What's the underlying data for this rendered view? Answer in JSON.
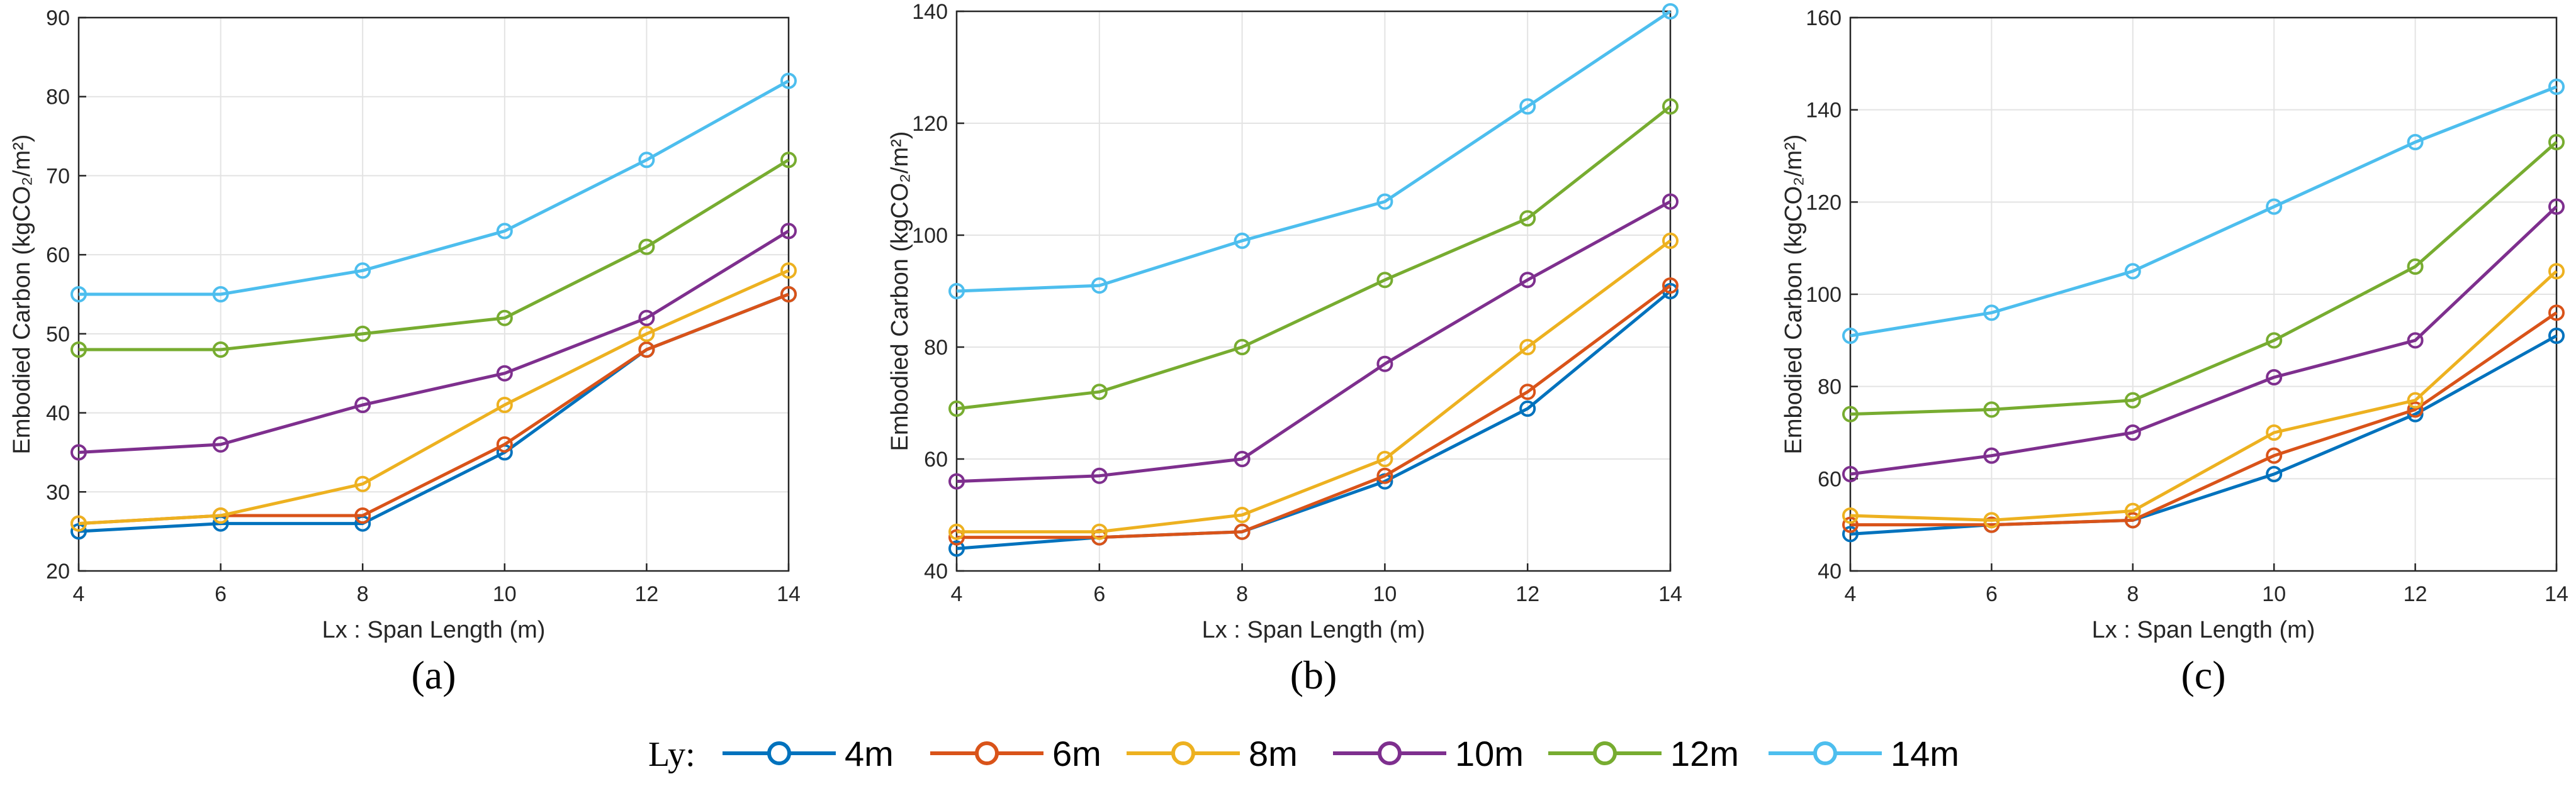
{
  "figure": {
    "panel_labels": [
      "(a)",
      "(b)",
      "(c)"
    ],
    "legend_title": "Ly:",
    "colors": {
      "4m": "#0072BD",
      "6m": "#D95319",
      "8m": "#EDB120",
      "10m": "#7E2F8E",
      "12m": "#77AC30",
      "14m": "#4DBEEE"
    }
  },
  "chart_data": [
    {
      "type": "line",
      "panel": "(a)",
      "title": "",
      "xlabel": "Lx : Span Length (m)",
      "ylabel": "Embodied Carbon (kgCO₂/m²)",
      "x": [
        4,
        6,
        8,
        10,
        12,
        14
      ],
      "xlim": [
        4,
        14
      ],
      "ylim": [
        20,
        90
      ],
      "yticks": [
        20,
        30,
        40,
        50,
        60,
        70,
        80,
        90
      ],
      "grid": true,
      "series": [
        {
          "name": "4m",
          "values": [
            25,
            26,
            26,
            35,
            48,
            55
          ]
        },
        {
          "name": "6m",
          "values": [
            26,
            27,
            27,
            36,
            48,
            55
          ]
        },
        {
          "name": "8m",
          "values": [
            26,
            27,
            31,
            41,
            50,
            58
          ]
        },
        {
          "name": "10m",
          "values": [
            35,
            36,
            41,
            45,
            52,
            63
          ]
        },
        {
          "name": "12m",
          "values": [
            48,
            48,
            50,
            52,
            61,
            72
          ]
        },
        {
          "name": "14m",
          "values": [
            55,
            55,
            58,
            63,
            72,
            82
          ]
        }
      ]
    },
    {
      "type": "line",
      "panel": "(b)",
      "title": "",
      "xlabel": "Lx : Span Length (m)",
      "ylabel": "Embodied Carbon (kgCO₂/m²)",
      "x": [
        4,
        6,
        8,
        10,
        12,
        14
      ],
      "xlim": [
        4,
        14
      ],
      "ylim": [
        40,
        140
      ],
      "yticks": [
        40,
        60,
        80,
        100,
        120,
        140
      ],
      "grid": true,
      "series": [
        {
          "name": "4m",
          "values": [
            44,
            46,
            47,
            56,
            69,
            90
          ]
        },
        {
          "name": "6m",
          "values": [
            46,
            46,
            47,
            57,
            72,
            91
          ]
        },
        {
          "name": "8m",
          "values": [
            47,
            47,
            50,
            60,
            80,
            99
          ]
        },
        {
          "name": "10m",
          "values": [
            56,
            57,
            60,
            77,
            92,
            106
          ]
        },
        {
          "name": "12m",
          "values": [
            69,
            72,
            80,
            92,
            103,
            123
          ]
        },
        {
          "name": "14m",
          "values": [
            90,
            91,
            99,
            106,
            123,
            140
          ]
        }
      ]
    },
    {
      "type": "line",
      "panel": "(c)",
      "title": "",
      "xlabel": "Lx : Span Length (m)",
      "ylabel": "Embodied Carbon (kgCO₂/m²)",
      "x": [
        4,
        6,
        8,
        10,
        12,
        14
      ],
      "xlim": [
        4,
        14
      ],
      "ylim": [
        40,
        160
      ],
      "yticks": [
        40,
        60,
        80,
        100,
        120,
        140,
        160
      ],
      "grid": true,
      "series": [
        {
          "name": "4m",
          "values": [
            48,
            50,
            51,
            61,
            74,
            91
          ]
        },
        {
          "name": "6m",
          "values": [
            50,
            50,
            51,
            65,
            75,
            96
          ]
        },
        {
          "name": "8m",
          "values": [
            52,
            51,
            53,
            70,
            77,
            105
          ]
        },
        {
          "name": "10m",
          "values": [
            61,
            65,
            70,
            82,
            90,
            119
          ]
        },
        {
          "name": "12m",
          "values": [
            74,
            75,
            77,
            90,
            106,
            133
          ]
        },
        {
          "name": "14m",
          "values": [
            91,
            96,
            105,
            119,
            133,
            145
          ]
        }
      ]
    }
  ]
}
